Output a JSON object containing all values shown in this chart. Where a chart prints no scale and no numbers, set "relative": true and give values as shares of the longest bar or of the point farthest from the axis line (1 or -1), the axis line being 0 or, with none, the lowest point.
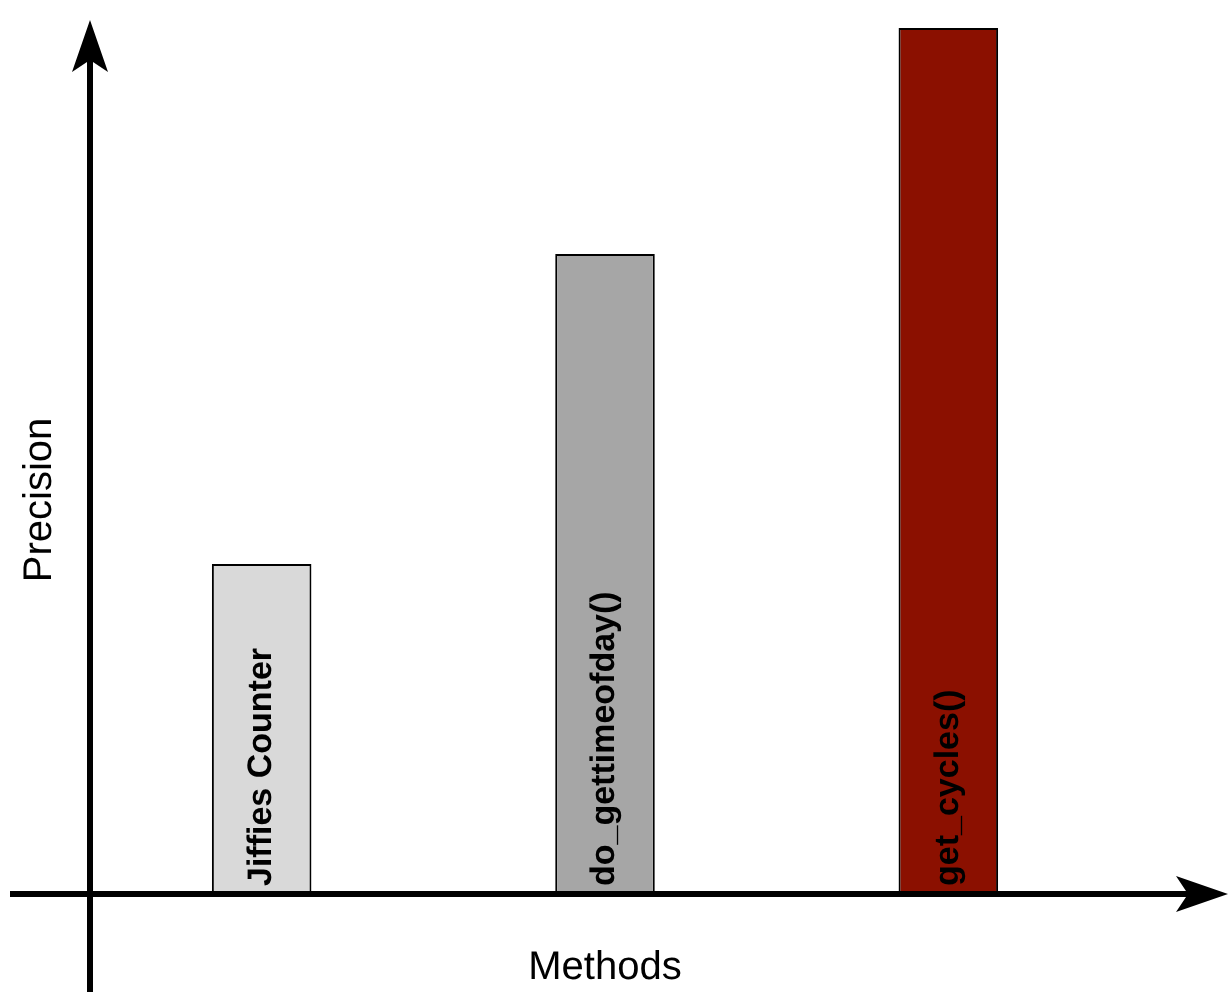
{
  "chart_data": {
    "type": "bar",
    "xlabel": "Methods",
    "ylabel": "Precision",
    "relative": true,
    "categories": [
      "Jiffies Counter",
      "do_gettimeofday()",
      "get_cycles()"
    ],
    "values": [
      0.381,
      0.739,
      1
    ],
    "colors": [
      "#d9d9d9",
      "#a6a6a6",
      "#8b1000"
    ]
  }
}
